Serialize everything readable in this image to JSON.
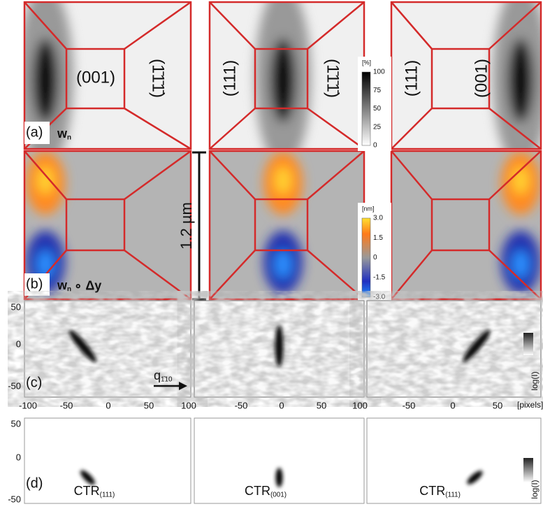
{
  "row_a": {
    "label": "(a)",
    "quantity": "w",
    "quantity_sub": "n",
    "panels": [
      {
        "facets": [
          "(001)",
          "(1̄1̄1̄)"
        ]
      },
      {
        "facets": [
          "(111)",
          "(1̄1̄1̄)"
        ]
      },
      {
        "facets": [
          "(111)",
          "(001)"
        ]
      }
    ],
    "colorbar": {
      "unit": "[%]",
      "ticks": [
        "100",
        "75",
        "50",
        "25",
        "0"
      ]
    }
  },
  "row_b": {
    "label": "(b)",
    "quantity": "w",
    "quantity_sub": "n",
    "operator": "∘ Δy",
    "scale_bar": "1.2 µm",
    "colorbar": {
      "unit": "[nm]",
      "ticks": [
        "3.0",
        "1.5",
        "0",
        "-1.5",
        "-3.0"
      ]
    }
  },
  "row_c": {
    "label": "(c)",
    "yticks": [
      "50",
      "0",
      "-50"
    ],
    "xticks": [
      [
        "-100",
        "-50",
        "0",
        "50",
        "100"
      ],
      [
        "-50",
        "0",
        "50",
        "100"
      ],
      [
        "-50",
        "0",
        "50"
      ]
    ],
    "x_unit": "[pixels]",
    "arrow_label": "q",
    "arrow_sub": "1̄10",
    "colorbar_label": "log(I)"
  },
  "row_d": {
    "label": "(d)",
    "yticks": [
      "50",
      "0",
      "-50"
    ],
    "ctr": [
      {
        "base": "CTR",
        "sub": "(111)"
      },
      {
        "base": "CTR",
        "sub": "(001)"
      },
      {
        "base": "CTR",
        "sub": "(111)"
      }
    ],
    "colorbar_label": "log(I)"
  }
}
